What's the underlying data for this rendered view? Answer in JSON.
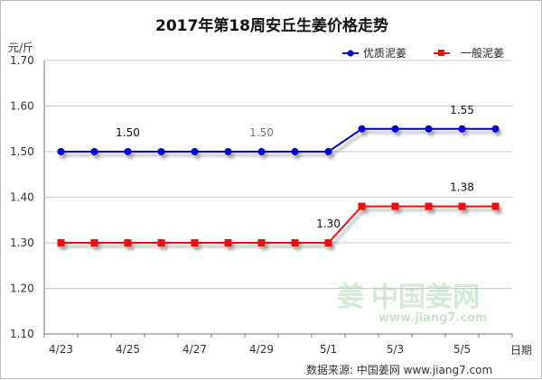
{
  "chart_data": {
    "type": "line",
    "title": "2017年第18周安丘生姜价格走势",
    "ylabel": "元/斤",
    "xlabel": "日期",
    "ylim": [
      1.1,
      1.7
    ],
    "yticks": [
      "1.70",
      "1.60",
      "1.50",
      "1.40",
      "1.30",
      "1.20",
      "1.10"
    ],
    "x": [
      "4/23",
      "4/24",
      "4/25",
      "4/26",
      "4/27",
      "4/28",
      "4/29",
      "4/30",
      "5/1",
      "5/2",
      "5/3",
      "5/4",
      "5/5",
      "5/6"
    ],
    "xtick_labels": [
      "4/23",
      "4/25",
      "4/27",
      "4/29",
      "5/1",
      "5/3",
      "5/5"
    ],
    "series": [
      {
        "name": "优质泥姜",
        "color": "#0000cc",
        "marker": "circle",
        "values": [
          1.5,
          1.5,
          1.5,
          1.5,
          1.5,
          1.5,
          1.5,
          1.5,
          1.5,
          1.55,
          1.55,
          1.55,
          1.55,
          1.55
        ]
      },
      {
        "name": "一般泥姜",
        "color": "#ee1111",
        "marker": "square",
        "values": [
          1.3,
          1.3,
          1.3,
          1.3,
          1.3,
          1.3,
          1.3,
          1.3,
          1.3,
          1.38,
          1.38,
          1.38,
          1.38,
          1.38
        ]
      }
    ],
    "annotations": [
      {
        "text": "1.50",
        "x": "4/25",
        "series": 0,
        "color": "#111111"
      },
      {
        "text": "1.50",
        "x": "4/29",
        "series": 0,
        "color": "#777777"
      },
      {
        "text": "1.55",
        "x": "5/5",
        "series": 0,
        "color": "#111111"
      },
      {
        "text": "1.30",
        "x": "5/1",
        "series": 1,
        "color": "#111111"
      },
      {
        "text": "1.38",
        "x": "5/5",
        "series": 1,
        "color": "#111111"
      }
    ],
    "grid": "horizontal",
    "legend_position": "top-right"
  },
  "watermark": {
    "logo_text": "姜",
    "brand": "中国姜网",
    "url": "www.jiang7.com"
  },
  "source_text": "数据来源: 中国姜网 www.jiang7.com"
}
